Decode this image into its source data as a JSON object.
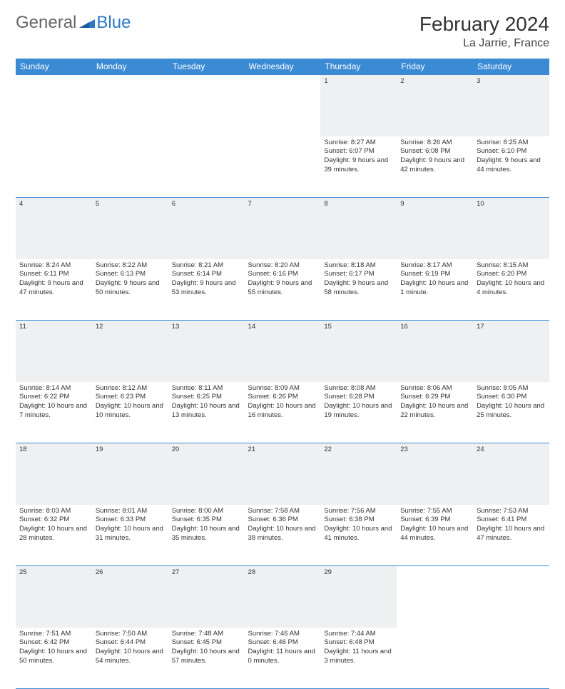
{
  "logo": {
    "general": "General",
    "blue": "Blue"
  },
  "header": {
    "month_title": "February 2024",
    "location": "La Jarrie, France"
  },
  "style": {
    "header_bg": "#3b8bd4",
    "header_text": "#ffffff",
    "daynum_bg": "#eef0f1",
    "rule_color": "#3b8bd4",
    "body_text": "#333333",
    "font_size_detail": 9.5
  },
  "weekdays": [
    "Sunday",
    "Monday",
    "Tuesday",
    "Wednesday",
    "Thursday",
    "Friday",
    "Saturday"
  ],
  "weeks": [
    {
      "days": [
        null,
        null,
        null,
        null,
        {
          "n": "1",
          "sunrise": "Sunrise: 8:27 AM",
          "sunset": "Sunset: 6:07 PM",
          "daylight": "Daylight: 9 hours and 39 minutes."
        },
        {
          "n": "2",
          "sunrise": "Sunrise: 8:26 AM",
          "sunset": "Sunset: 6:08 PM",
          "daylight": "Daylight: 9 hours and 42 minutes."
        },
        {
          "n": "3",
          "sunrise": "Sunrise: 8:25 AM",
          "sunset": "Sunset: 6:10 PM",
          "daylight": "Daylight: 9 hours and 44 minutes."
        }
      ]
    },
    {
      "days": [
        {
          "n": "4",
          "sunrise": "Sunrise: 8:24 AM",
          "sunset": "Sunset: 6:11 PM",
          "daylight": "Daylight: 9 hours and 47 minutes."
        },
        {
          "n": "5",
          "sunrise": "Sunrise: 8:22 AM",
          "sunset": "Sunset: 6:13 PM",
          "daylight": "Daylight: 9 hours and 50 minutes."
        },
        {
          "n": "6",
          "sunrise": "Sunrise: 8:21 AM",
          "sunset": "Sunset: 6:14 PM",
          "daylight": "Daylight: 9 hours and 53 minutes."
        },
        {
          "n": "7",
          "sunrise": "Sunrise: 8:20 AM",
          "sunset": "Sunset: 6:16 PM",
          "daylight": "Daylight: 9 hours and 55 minutes."
        },
        {
          "n": "8",
          "sunrise": "Sunrise: 8:18 AM",
          "sunset": "Sunset: 6:17 PM",
          "daylight": "Daylight: 9 hours and 58 minutes."
        },
        {
          "n": "9",
          "sunrise": "Sunrise: 8:17 AM",
          "sunset": "Sunset: 6:19 PM",
          "daylight": "Daylight: 10 hours and 1 minute."
        },
        {
          "n": "10",
          "sunrise": "Sunrise: 8:15 AM",
          "sunset": "Sunset: 6:20 PM",
          "daylight": "Daylight: 10 hours and 4 minutes."
        }
      ]
    },
    {
      "days": [
        {
          "n": "11",
          "sunrise": "Sunrise: 8:14 AM",
          "sunset": "Sunset: 6:22 PM",
          "daylight": "Daylight: 10 hours and 7 minutes."
        },
        {
          "n": "12",
          "sunrise": "Sunrise: 8:12 AM",
          "sunset": "Sunset: 6:23 PM",
          "daylight": "Daylight: 10 hours and 10 minutes."
        },
        {
          "n": "13",
          "sunrise": "Sunrise: 8:11 AM",
          "sunset": "Sunset: 6:25 PM",
          "daylight": "Daylight: 10 hours and 13 minutes."
        },
        {
          "n": "14",
          "sunrise": "Sunrise: 8:09 AM",
          "sunset": "Sunset: 6:26 PM",
          "daylight": "Daylight: 10 hours and 16 minutes."
        },
        {
          "n": "15",
          "sunrise": "Sunrise: 8:08 AM",
          "sunset": "Sunset: 6:28 PM",
          "daylight": "Daylight: 10 hours and 19 minutes."
        },
        {
          "n": "16",
          "sunrise": "Sunrise: 8:06 AM",
          "sunset": "Sunset: 6:29 PM",
          "daylight": "Daylight: 10 hours and 22 minutes."
        },
        {
          "n": "17",
          "sunrise": "Sunrise: 8:05 AM",
          "sunset": "Sunset: 6:30 PM",
          "daylight": "Daylight: 10 hours and 25 minutes."
        }
      ]
    },
    {
      "days": [
        {
          "n": "18",
          "sunrise": "Sunrise: 8:03 AM",
          "sunset": "Sunset: 6:32 PM",
          "daylight": "Daylight: 10 hours and 28 minutes."
        },
        {
          "n": "19",
          "sunrise": "Sunrise: 8:01 AM",
          "sunset": "Sunset: 6:33 PM",
          "daylight": "Daylight: 10 hours and 31 minutes."
        },
        {
          "n": "20",
          "sunrise": "Sunrise: 8:00 AM",
          "sunset": "Sunset: 6:35 PM",
          "daylight": "Daylight: 10 hours and 35 minutes."
        },
        {
          "n": "21",
          "sunrise": "Sunrise: 7:58 AM",
          "sunset": "Sunset: 6:36 PM",
          "daylight": "Daylight: 10 hours and 38 minutes."
        },
        {
          "n": "22",
          "sunrise": "Sunrise: 7:56 AM",
          "sunset": "Sunset: 6:38 PM",
          "daylight": "Daylight: 10 hours and 41 minutes."
        },
        {
          "n": "23",
          "sunrise": "Sunrise: 7:55 AM",
          "sunset": "Sunset: 6:39 PM",
          "daylight": "Daylight: 10 hours and 44 minutes."
        },
        {
          "n": "24",
          "sunrise": "Sunrise: 7:53 AM",
          "sunset": "Sunset: 6:41 PM",
          "daylight": "Daylight: 10 hours and 47 minutes."
        }
      ]
    },
    {
      "days": [
        {
          "n": "25",
          "sunrise": "Sunrise: 7:51 AM",
          "sunset": "Sunset: 6:42 PM",
          "daylight": "Daylight: 10 hours and 50 minutes."
        },
        {
          "n": "26",
          "sunrise": "Sunrise: 7:50 AM",
          "sunset": "Sunset: 6:44 PM",
          "daylight": "Daylight: 10 hours and 54 minutes."
        },
        {
          "n": "27",
          "sunrise": "Sunrise: 7:48 AM",
          "sunset": "Sunset: 6:45 PM",
          "daylight": "Daylight: 10 hours and 57 minutes."
        },
        {
          "n": "28",
          "sunrise": "Sunrise: 7:46 AM",
          "sunset": "Sunset: 6:46 PM",
          "daylight": "Daylight: 11 hours and 0 minutes."
        },
        {
          "n": "29",
          "sunrise": "Sunrise: 7:44 AM",
          "sunset": "Sunset: 6:48 PM",
          "daylight": "Daylight: 11 hours and 3 minutes."
        },
        null,
        null
      ]
    }
  ]
}
